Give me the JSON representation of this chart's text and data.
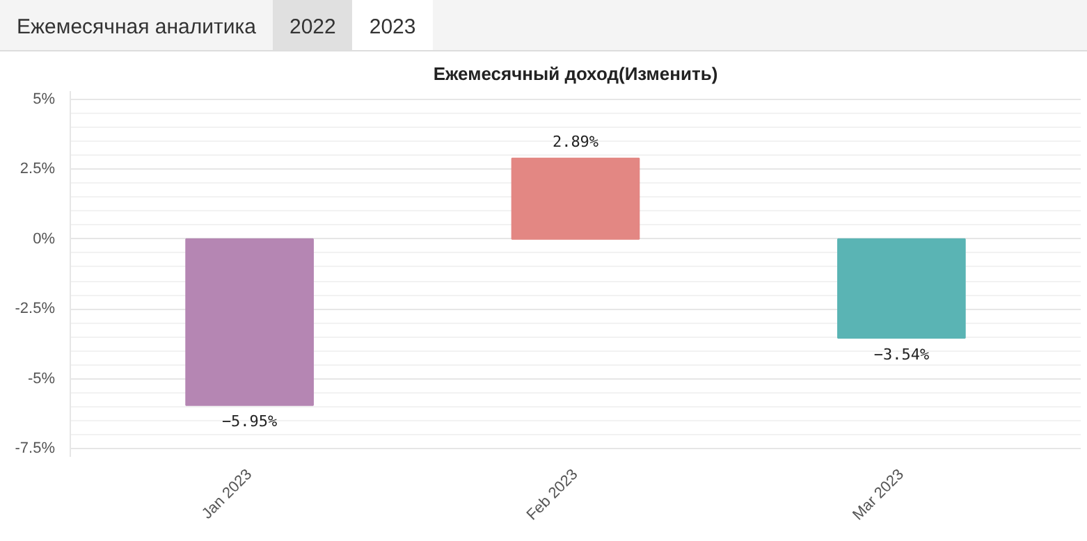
{
  "chart_data": {
    "type": "bar",
    "title": "Ежемесячный доход(Изменить)",
    "annotations": [
      "Ежемесячная аналитика",
      "2022",
      "2023"
    ],
    "categories": [
      "Jan 2023",
      "Feb 2023",
      "Mar 2023"
    ],
    "values": [
      -5.95,
      2.89,
      -3.54
    ],
    "colors": [
      "#b586b3",
      "#e38783",
      "#5ab4b4"
    ],
    "value_labels": [
      "−5.95%",
      "2.89%",
      "−3.54%"
    ],
    "ylim": [
      -7.8,
      5.3
    ],
    "yticks": [
      {
        "value": -7.5,
        "label": "-7.5%"
      },
      {
        "value": -5,
        "label": "-5%"
      },
      {
        "value": -2.5,
        "label": "-2.5%"
      },
      {
        "value": 0,
        "label": "0%"
      },
      {
        "value": 2.5,
        "label": "2.5%"
      },
      {
        "value": 5,
        "label": "5%"
      }
    ],
    "grid": true
  }
}
